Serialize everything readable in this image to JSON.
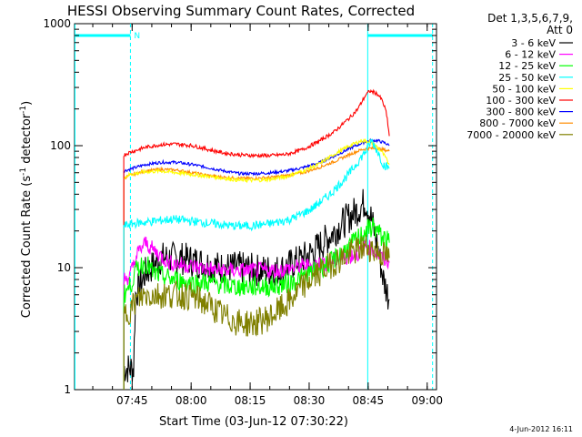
{
  "chart_data": {
    "type": "line",
    "title": "HESSI Observing Summary Count Rates, Corrected",
    "xlabel": "Start Time (03-Jun-12 07:30:22)",
    "ylabel_main": "Corrected Count Rate (s",
    "ylabel_sup1": "-1",
    "ylabel_mid": " detector",
    "ylabel_sup2": "-1",
    "ylabel_end": ")",
    "x_units": "minutes since 07:30:22",
    "xlim": [
      0,
      92
    ],
    "ylim": [
      1,
      1000
    ],
    "yscale": "log",
    "xtick_values": [
      14.63,
      29.63,
      44.63,
      59.63,
      74.63,
      89.63
    ],
    "xtick_labels": [
      "07:45",
      "08:00",
      "08:15",
      "08:30",
      "08:45",
      "09:00"
    ],
    "ytick_values": [
      1,
      10,
      100,
      1000
    ],
    "ytick_labels": [
      "1",
      "10",
      "100",
      "1000"
    ],
    "legend_header_line1": "Det 1,3,5,6,7,9,",
    "legend_header_line2": "Att 0",
    "legend_position": "top-right",
    "series": [
      {
        "name": "3 - 6 keV",
        "color": "#000000",
        "points": [
          [
            12.5,
            1.5
          ],
          [
            15,
            1.5
          ],
          [
            15.5,
            6
          ],
          [
            18,
            9
          ],
          [
            22,
            12
          ],
          [
            27,
            12
          ],
          [
            32,
            11
          ],
          [
            37,
            10
          ],
          [
            42,
            10
          ],
          [
            47,
            9.5
          ],
          [
            52,
            9.5
          ],
          [
            56,
            11
          ],
          [
            60,
            13
          ],
          [
            64,
            17
          ],
          [
            68,
            23
          ],
          [
            72,
            30
          ],
          [
            74,
            35
          ],
          [
            75.5,
            25
          ],
          [
            77,
            15
          ],
          [
            78.5,
            8
          ],
          [
            80,
            5.5
          ]
        ]
      },
      {
        "name": "6 - 12 keV",
        "color": "#ff00ff",
        "points": [
          [
            12.5,
            8
          ],
          [
            14,
            8.5
          ],
          [
            16,
            13
          ],
          [
            18,
            16
          ],
          [
            20,
            14
          ],
          [
            24,
            11
          ],
          [
            28,
            10.5
          ],
          [
            32,
            10
          ],
          [
            36,
            9.5
          ],
          [
            40,
            9.5
          ],
          [
            44,
            9.5
          ],
          [
            48,
            9.5
          ],
          [
            52,
            9.5
          ],
          [
            56,
            10
          ],
          [
            60,
            10.5
          ],
          [
            64,
            11
          ],
          [
            68,
            12
          ],
          [
            72,
            13
          ],
          [
            74,
            15
          ],
          [
            76,
            14
          ],
          [
            78,
            12
          ],
          [
            80,
            11
          ]
        ]
      },
      {
        "name": "12 - 25 keV",
        "color": "#00ff00",
        "points": [
          [
            12.5,
            6
          ],
          [
            14,
            7
          ],
          [
            16,
            10
          ],
          [
            18,
            11
          ],
          [
            20,
            9
          ],
          [
            25,
            8
          ],
          [
            30,
            7.5
          ],
          [
            35,
            7.5
          ],
          [
            40,
            7
          ],
          [
            45,
            7
          ],
          [
            50,
            7
          ],
          [
            55,
            7.5
          ],
          [
            60,
            9
          ],
          [
            65,
            11
          ],
          [
            70,
            15
          ],
          [
            74,
            20
          ],
          [
            76,
            22
          ],
          [
            78,
            18
          ],
          [
            80,
            16
          ]
        ]
      },
      {
        "name": "25 - 50 keV",
        "color": "#00ffff",
        "points": [
          [
            12.5,
            22
          ],
          [
            15,
            23
          ],
          [
            20,
            24
          ],
          [
            25,
            25
          ],
          [
            30,
            24
          ],
          [
            35,
            23
          ],
          [
            40,
            22
          ],
          [
            45,
            22
          ],
          [
            50,
            23
          ],
          [
            55,
            25
          ],
          [
            60,
            30
          ],
          [
            65,
            40
          ],
          [
            70,
            60
          ],
          [
            74,
            90
          ],
          [
            75.5,
            110
          ],
          [
            77,
            90
          ],
          [
            78.5,
            70
          ],
          [
            80,
            65
          ]
        ]
      },
      {
        "name": "50 - 100 keV",
        "color": "#ffff00",
        "points": [
          [
            12.5,
            55
          ],
          [
            14,
            58
          ],
          [
            18,
            61
          ],
          [
            22,
            62
          ],
          [
            26,
            60
          ],
          [
            30,
            58
          ],
          [
            34,
            56
          ],
          [
            38,
            54
          ],
          [
            42,
            52
          ],
          [
            46,
            52
          ],
          [
            50,
            53
          ],
          [
            54,
            56
          ],
          [
            58,
            62
          ],
          [
            62,
            70
          ],
          [
            66,
            85
          ],
          [
            70,
            100
          ],
          [
            73,
            110
          ],
          [
            75,
            108
          ],
          [
            76.5,
            100
          ],
          [
            78,
            90
          ],
          [
            79,
            80
          ],
          [
            80,
            70
          ]
        ]
      },
      {
        "name": "100 - 300 keV",
        "color": "#ff0000",
        "points": [
          [
            12.5,
            84
          ],
          [
            14,
            88
          ],
          [
            18,
            97
          ],
          [
            22,
            102
          ],
          [
            26,
            103
          ],
          [
            30,
            100
          ],
          [
            34,
            93
          ],
          [
            38,
            87
          ],
          [
            42,
            84
          ],
          [
            46,
            83
          ],
          [
            50,
            83
          ],
          [
            54,
            85
          ],
          [
            58,
            93
          ],
          [
            62,
            108
          ],
          [
            66,
            130
          ],
          [
            70,
            170
          ],
          [
            72,
            200
          ],
          [
            74,
            260
          ],
          [
            75,
            280
          ],
          [
            76,
            275
          ],
          [
            77,
            265
          ],
          [
            78,
            240
          ],
          [
            79,
            200
          ],
          [
            79.5,
            165
          ],
          [
            80,
            120
          ]
        ]
      },
      {
        "name": "300 - 800 keV",
        "color": "#0000ff",
        "points": [
          [
            12.5,
            62
          ],
          [
            14,
            64
          ],
          [
            18,
            70
          ],
          [
            22,
            73
          ],
          [
            26,
            73
          ],
          [
            30,
            70
          ],
          [
            34,
            66
          ],
          [
            38,
            62
          ],
          [
            42,
            59
          ],
          [
            46,
            59
          ],
          [
            50,
            60
          ],
          [
            54,
            62
          ],
          [
            58,
            66
          ],
          [
            62,
            72
          ],
          [
            66,
            82
          ],
          [
            70,
            95
          ],
          [
            73,
            105
          ],
          [
            75,
            110
          ],
          [
            77,
            110
          ],
          [
            79,
            105
          ],
          [
            80,
            100
          ]
        ]
      },
      {
        "name": "800 - 7000 keV",
        "color": "#ff8c00",
        "points": [
          [
            12.5,
            54
          ],
          [
            14,
            57
          ],
          [
            18,
            62
          ],
          [
            22,
            64
          ],
          [
            26,
            63
          ],
          [
            30,
            60
          ],
          [
            34,
            57
          ],
          [
            38,
            55
          ],
          [
            42,
            54
          ],
          [
            46,
            54
          ],
          [
            50,
            55
          ],
          [
            54,
            57
          ],
          [
            58,
            60
          ],
          [
            62,
            66
          ],
          [
            66,
            74
          ],
          [
            70,
            85
          ],
          [
            73,
            93
          ],
          [
            75,
            95
          ],
          [
            77,
            95
          ],
          [
            79,
            92
          ],
          [
            80,
            90
          ]
        ]
      },
      {
        "name": "7000 - 20000 keV",
        "color": "#808000",
        "points": [
          [
            12.5,
            4
          ],
          [
            14,
            4.5
          ],
          [
            16,
            5.5
          ],
          [
            18,
            6
          ],
          [
            22,
            6
          ],
          [
            26,
            6
          ],
          [
            30,
            5.8
          ],
          [
            34,
            5
          ],
          [
            38,
            4
          ],
          [
            42,
            3.5
          ],
          [
            46,
            3.5
          ],
          [
            50,
            4
          ],
          [
            54,
            5
          ],
          [
            58,
            7
          ],
          [
            62,
            9
          ],
          [
            66,
            11
          ],
          [
            70,
            13
          ],
          [
            74,
            15
          ],
          [
            76,
            14
          ],
          [
            78,
            13
          ],
          [
            80,
            12
          ]
        ]
      }
    ],
    "markers": {
      "N_label": "N",
      "bars": [
        {
          "x_start": 0,
          "x_end": 14.2,
          "y": 800
        },
        {
          "x_start": 74.4,
          "x_end": 91,
          "y": 800
        }
      ],
      "solid_vlines": [
        0,
        74.4
      ],
      "dashed_vlines": [
        14.2,
        91
      ]
    },
    "timestamp": "4-Jun-2012 16:11"
  }
}
